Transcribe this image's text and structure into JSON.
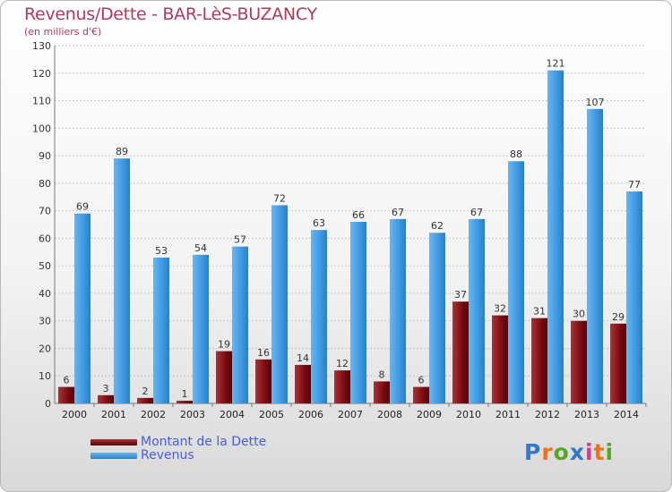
{
  "header": {
    "title": "Revenus/Dette - BAR-LèS-BUZANCY",
    "subtitle": "(en milliers d'€)"
  },
  "legend": [
    {
      "label": "Montant de la Dette",
      "color": "#7a0c12"
    },
    {
      "label": "Revenus",
      "color": "#3d98e0"
    }
  ],
  "logo": {
    "text": "Proxiti",
    "letters": [
      "P",
      "r",
      "o",
      "x",
      "i",
      "t",
      "i"
    ],
    "colors": [
      "#2f79c8",
      "#e8731c",
      "#5aa427",
      "#2f79c8",
      "#d43d8f",
      "#e8731c",
      "#5aa427"
    ]
  },
  "chart_data": {
    "type": "bar",
    "title": "Revenus/Dette - BAR-LèS-BUZANCY",
    "subtitle": "(en milliers d'€)",
    "categories": [
      "2000",
      "2001",
      "2002",
      "2003",
      "2004",
      "2005",
      "2006",
      "2007",
      "2008",
      "2009",
      "2010",
      "2011",
      "2012",
      "2013",
      "2014"
    ],
    "series": [
      {
        "name": "Montant de la Dette",
        "color": "#7a0c12",
        "values": [
          6,
          3,
          2,
          1,
          19,
          16,
          14,
          12,
          8,
          6,
          37,
          32,
          31,
          30,
          29
        ]
      },
      {
        "name": "Revenus",
        "color": "#3d98e0",
        "values": [
          69,
          89,
          53,
          54,
          57,
          72,
          63,
          66,
          67,
          62,
          67,
          88,
          121,
          107,
          77
        ]
      }
    ],
    "ylim": [
      0,
      130
    ],
    "yticks": [
      0,
      10,
      20,
      30,
      40,
      50,
      60,
      70,
      80,
      90,
      100,
      110,
      120,
      130
    ],
    "grid": true,
    "legend_position": "bottom-left"
  }
}
